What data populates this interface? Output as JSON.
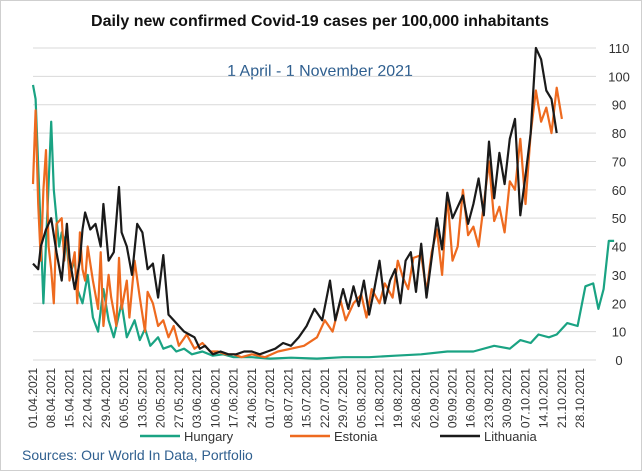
{
  "chart_data": {
    "type": "line",
    "title": "Daily new confirmed Covid-19 cases per 100,000 inhabitants",
    "subtitle": "1 April - 1 November 2021",
    "source": "Sources: Our World In Data, Portfolio",
    "ylim": [
      0,
      110
    ],
    "yticks": [
      0,
      10,
      20,
      30,
      40,
      50,
      60,
      70,
      80,
      90,
      100,
      110
    ],
    "xticks": [
      "01.04.2021",
      "08.04.2021",
      "15.04.2021",
      "22.04.2021",
      "29.04.2021",
      "06.05.2021",
      "13.05.2021",
      "20.05.2021",
      "27.05.2021",
      "03.06.2021",
      "10.06.2021",
      "17.06.2021",
      "24.06.2021",
      "01.07.2021",
      "08.07.2021",
      "15.07.2021",
      "22.07.2021",
      "29.07.2021",
      "05.08.2021",
      "12.08.2021",
      "19.08.2021",
      "26.08.2021",
      "02.09.2021",
      "09.09.2021",
      "16.09.2021",
      "23.09.2021",
      "30.09.2021",
      "07.10.2021",
      "14.10.2021",
      "21.10.2021",
      "28.10.2021"
    ],
    "grid": "horizontal",
    "legend_position": "bottom",
    "series": [
      {
        "name": "Hungary",
        "color": "#1aa383",
        "values": [
          [
            1,
            97
          ],
          [
            2,
            92
          ],
          [
            4,
            45
          ],
          [
            5,
            20
          ],
          [
            7,
            62
          ],
          [
            8,
            84
          ],
          [
            9,
            60
          ],
          [
            11,
            40
          ],
          [
            12,
            45
          ],
          [
            14,
            40
          ],
          [
            15,
            30
          ],
          [
            17,
            35
          ],
          [
            18,
            25
          ],
          [
            20,
            20
          ],
          [
            22,
            30
          ],
          [
            24,
            15
          ],
          [
            26,
            10
          ],
          [
            28,
            25
          ],
          [
            30,
            14
          ],
          [
            32,
            8
          ],
          [
            35,
            20
          ],
          [
            37,
            8
          ],
          [
            40,
            14
          ],
          [
            42,
            7
          ],
          [
            44,
            11
          ],
          [
            46,
            5
          ],
          [
            49,
            8
          ],
          [
            51,
            4
          ],
          [
            54,
            5
          ],
          [
            56,
            3
          ],
          [
            59,
            4
          ],
          [
            62,
            2
          ],
          [
            66,
            3
          ],
          [
            70,
            1.5
          ],
          [
            74,
            2
          ],
          [
            78,
            1
          ],
          [
            85,
            1
          ],
          [
            92,
            0.5
          ],
          [
            100,
            0.8
          ],
          [
            110,
            0.5
          ],
          [
            120,
            1
          ],
          [
            130,
            1
          ],
          [
            140,
            1.5
          ],
          [
            150,
            2
          ],
          [
            160,
            3
          ],
          [
            170,
            3
          ],
          [
            178,
            5
          ],
          [
            184,
            4
          ],
          [
            188,
            7
          ],
          [
            192,
            6
          ],
          [
            195,
            9
          ],
          [
            199,
            8
          ],
          [
            202,
            9
          ],
          [
            206,
            13
          ],
          [
            210,
            12
          ],
          [
            213,
            26
          ],
          [
            216,
            27
          ],
          [
            218,
            18
          ],
          [
            220,
            25
          ],
          [
            222,
            42
          ],
          [
            224,
            42
          ]
        ]
      },
      {
        "name": "Estonia",
        "color": "#ee6a1f",
        "values": [
          [
            1,
            62
          ],
          [
            2,
            88
          ],
          [
            3,
            55
          ],
          [
            4,
            35
          ],
          [
            5,
            60
          ],
          [
            6,
            74
          ],
          [
            7,
            40
          ],
          [
            8,
            32
          ],
          [
            9,
            20
          ],
          [
            10,
            48
          ],
          [
            12,
            50
          ],
          [
            13,
            35
          ],
          [
            14,
            48
          ],
          [
            15,
            28
          ],
          [
            17,
            38
          ],
          [
            18,
            20
          ],
          [
            19,
            45
          ],
          [
            20,
            32
          ],
          [
            21,
            28
          ],
          [
            22,
            40
          ],
          [
            24,
            28
          ],
          [
            26,
            18
          ],
          [
            27,
            38
          ],
          [
            28,
            12
          ],
          [
            30,
            30
          ],
          [
            31,
            22
          ],
          [
            33,
            12
          ],
          [
            34,
            36
          ],
          [
            35,
            18
          ],
          [
            37,
            28
          ],
          [
            38,
            15
          ],
          [
            40,
            35
          ],
          [
            42,
            22
          ],
          [
            44,
            10
          ],
          [
            45,
            24
          ],
          [
            47,
            20
          ],
          [
            49,
            12
          ],
          [
            51,
            14
          ],
          [
            53,
            8
          ],
          [
            55,
            12
          ],
          [
            57,
            5
          ],
          [
            60,
            9
          ],
          [
            63,
            4
          ],
          [
            66,
            6
          ],
          [
            69,
            3
          ],
          [
            72,
            3
          ],
          [
            75,
            2
          ],
          [
            78,
            2
          ],
          [
            81,
            1
          ],
          [
            85,
            2
          ],
          [
            90,
            1
          ],
          [
            95,
            3
          ],
          [
            100,
            4
          ],
          [
            105,
            5
          ],
          [
            110,
            8
          ],
          [
            113,
            14
          ],
          [
            116,
            10
          ],
          [
            119,
            21
          ],
          [
            121,
            14
          ],
          [
            124,
            20
          ],
          [
            127,
            23
          ],
          [
            129,
            15
          ],
          [
            131,
            25
          ],
          [
            134,
            20
          ],
          [
            136,
            27
          ],
          [
            139,
            22
          ],
          [
            141,
            35
          ],
          [
            143,
            29
          ],
          [
            145,
            25
          ],
          [
            147,
            36
          ],
          [
            150,
            37
          ],
          [
            152,
            24
          ],
          [
            154,
            38
          ],
          [
            156,
            46
          ],
          [
            158,
            30
          ],
          [
            160,
            58
          ],
          [
            162,
            35
          ],
          [
            164,
            40
          ],
          [
            166,
            60
          ],
          [
            168,
            44
          ],
          [
            170,
            47
          ],
          [
            172,
            40
          ],
          [
            174,
            55
          ],
          [
            176,
            70
          ],
          [
            178,
            49
          ],
          [
            180,
            54
          ],
          [
            182,
            45
          ],
          [
            184,
            63
          ],
          [
            186,
            60
          ],
          [
            188,
            78
          ],
          [
            190,
            55
          ],
          [
            192,
            80
          ],
          [
            194,
            95
          ],
          [
            196,
            84
          ],
          [
            198,
            89
          ],
          [
            200,
            80
          ],
          [
            202,
            96
          ],
          [
            204,
            85
          ]
        ]
      },
      {
        "name": "Lithuania",
        "color": "#1a1a1a",
        "values": [
          [
            1,
            34
          ],
          [
            3,
            32
          ],
          [
            4,
            40
          ],
          [
            6,
            46
          ],
          [
            8,
            50
          ],
          [
            10,
            38
          ],
          [
            12,
            28
          ],
          [
            14,
            48
          ],
          [
            15,
            36
          ],
          [
            17,
            25
          ],
          [
            19,
            35
          ],
          [
            20,
            46
          ],
          [
            21,
            52
          ],
          [
            23,
            46
          ],
          [
            25,
            48
          ],
          [
            27,
            40
          ],
          [
            28,
            55
          ],
          [
            30,
            35
          ],
          [
            32,
            38
          ],
          [
            34,
            61
          ],
          [
            35,
            45
          ],
          [
            37,
            40
          ],
          [
            39,
            30
          ],
          [
            41,
            48
          ],
          [
            43,
            45
          ],
          [
            45,
            32
          ],
          [
            47,
            34
          ],
          [
            49,
            22
          ],
          [
            51,
            37
          ],
          [
            53,
            16
          ],
          [
            55,
            14
          ],
          [
            57,
            12
          ],
          [
            59,
            10
          ],
          [
            61,
            9
          ],
          [
            63,
            8
          ],
          [
            65,
            4
          ],
          [
            67,
            5
          ],
          [
            70,
            2
          ],
          [
            73,
            3
          ],
          [
            76,
            2
          ],
          [
            79,
            2
          ],
          [
            82,
            3
          ],
          [
            85,
            3
          ],
          [
            88,
            2
          ],
          [
            91,
            3
          ],
          [
            94,
            4
          ],
          [
            97,
            6
          ],
          [
            100,
            5
          ],
          [
            103,
            8
          ],
          [
            106,
            12
          ],
          [
            109,
            18
          ],
          [
            112,
            14
          ],
          [
            115,
            28
          ],
          [
            117,
            14
          ],
          [
            120,
            25
          ],
          [
            122,
            18
          ],
          [
            124,
            26
          ],
          [
            126,
            19
          ],
          [
            128,
            28
          ],
          [
            130,
            16
          ],
          [
            132,
            25
          ],
          [
            134,
            35
          ],
          [
            136,
            20
          ],
          [
            138,
            28
          ],
          [
            140,
            32
          ],
          [
            142,
            20
          ],
          [
            144,
            35
          ],
          [
            146,
            38
          ],
          [
            148,
            24
          ],
          [
            150,
            41
          ],
          [
            152,
            22
          ],
          [
            154,
            36
          ],
          [
            156,
            50
          ],
          [
            158,
            39
          ],
          [
            160,
            59
          ],
          [
            162,
            50
          ],
          [
            164,
            54
          ],
          [
            166,
            58
          ],
          [
            168,
            48
          ],
          [
            170,
            55
          ],
          [
            172,
            64
          ],
          [
            174,
            51
          ],
          [
            176,
            77
          ],
          [
            178,
            57
          ],
          [
            180,
            73
          ],
          [
            182,
            62
          ],
          [
            184,
            78
          ],
          [
            186,
            85
          ],
          [
            188,
            51
          ],
          [
            190,
            65
          ],
          [
            192,
            80
          ],
          [
            194,
            110
          ],
          [
            196,
            106
          ],
          [
            198,
            95
          ],
          [
            200,
            92
          ],
          [
            202,
            80
          ]
        ]
      }
    ]
  }
}
